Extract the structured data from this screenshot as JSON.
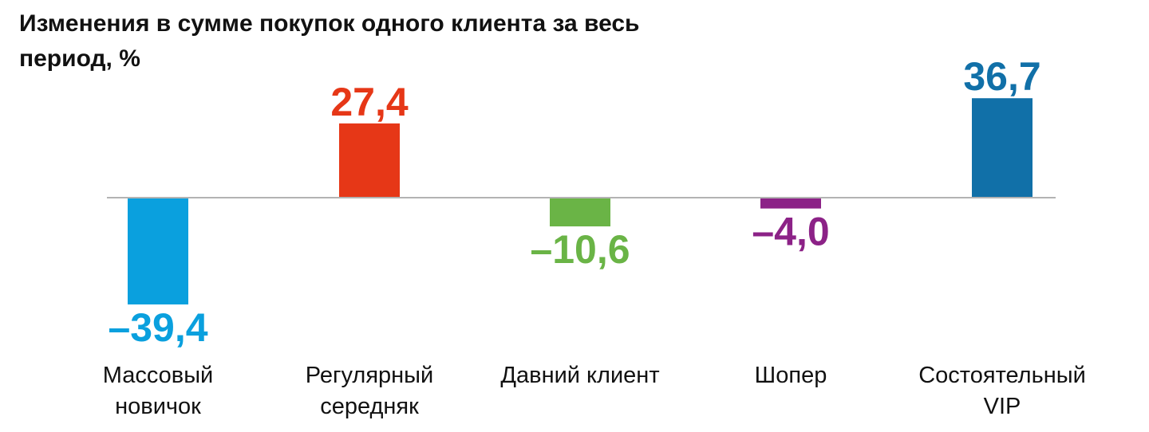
{
  "chart_data": {
    "type": "bar",
    "title": "Изменения в сумме покупок одного клиента за весь период, %",
    "categories": [
      [
        "Массовый",
        "новичок"
      ],
      [
        "Регулярный",
        "середняк"
      ],
      [
        "Давний клиент"
      ],
      [
        "Шопер"
      ],
      [
        "Состоятельный",
        "VIP"
      ]
    ],
    "values": [
      -39.4,
      27.4,
      -10.6,
      -4.0,
      36.7
    ],
    "value_labels": [
      "–39,4",
      "27,4",
      "–10,6",
      "–4,0",
      "36,7"
    ],
    "colors": [
      "#0aa0de",
      "#e63717",
      "#6ab446",
      "#8c2287",
      "#1170a8"
    ],
    "axis_color": "#b3b3b3",
    "xlabel": "",
    "ylabel": "",
    "grid": false,
    "legend": "none"
  }
}
